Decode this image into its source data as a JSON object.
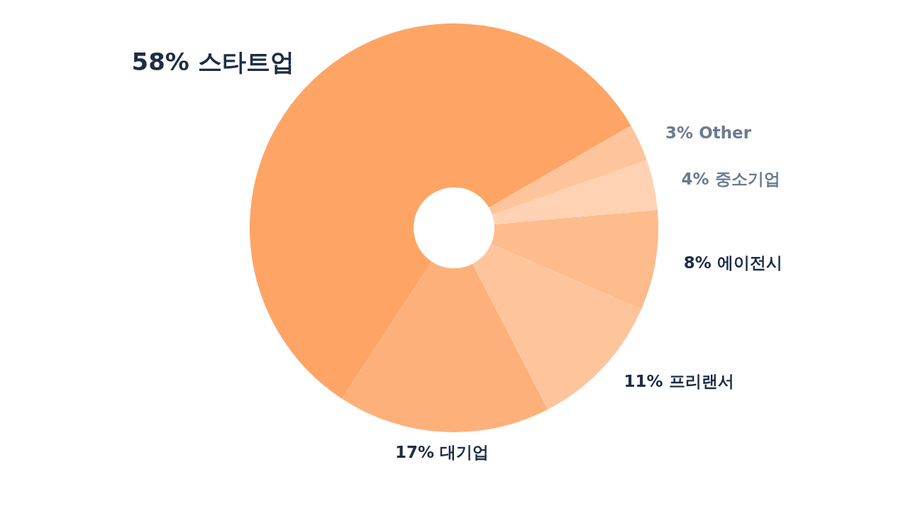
{
  "chart_data": {
    "type": "donut",
    "categories": [
      "스타트업",
      "대기업",
      "프리랜서",
      "에이전시",
      "중소기업",
      "Other"
    ],
    "values": [
      58,
      17,
      11,
      8,
      4,
      3
    ],
    "value_labels": [
      "58%",
      "17%",
      "11%",
      "8%",
      "4%",
      "3%"
    ],
    "colors": [
      "#fea465",
      "#feb07a",
      "#fec59c",
      "#febb8c",
      "#fed2b2",
      "#fec49b"
    ]
  }
}
